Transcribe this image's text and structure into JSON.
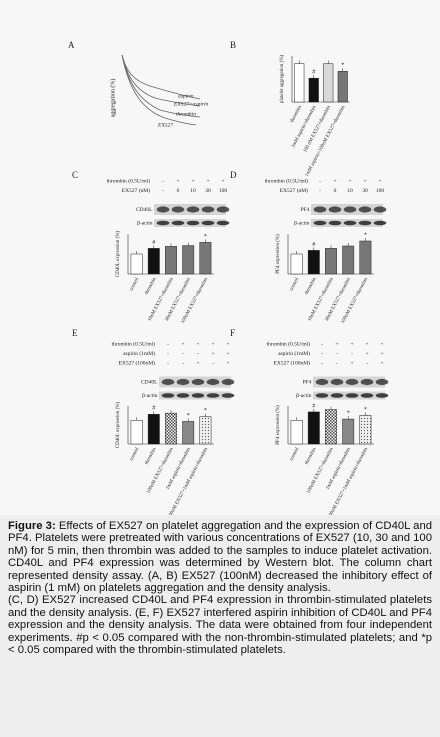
{
  "panel_a": {
    "label": "A",
    "ylabel": "aggregation (%)",
    "curves": [
      "aspirin",
      "EX527+aspirin",
      "thrombin",
      "EX527"
    ]
  },
  "chart_data": [
    {
      "type": "bar",
      "label": "B",
      "ylabel": "platelet aggregation (%)",
      "categories": [
        "thrombin",
        "1mM aspirin+thrombin",
        "100 nM EX527+thrombin",
        "1mM aspirin+100nM EX527+thrombin"
      ],
      "values": [
        100,
        62,
        100,
        80
      ],
      "fills": [
        "#ffffff",
        "#111111",
        "#d8d8d8",
        "#777777"
      ],
      "markers": [
        null,
        "#",
        null,
        "*"
      ],
      "ylim": [
        0,
        120
      ]
    },
    {
      "type": "bar",
      "label": "C",
      "ylabel": "CD40L expression (%)",
      "blot": {
        "rows": [
          {
            "name": "thrombin (0.5U/ml)",
            "cells": [
              "-",
              "+",
              "+",
              "+",
              "+"
            ]
          },
          {
            "name": "EX527 (nM)",
            "cells": [
              "-",
              "0",
              "10",
              "30",
              "100"
            ]
          }
        ],
        "bands": [
          "CD40L",
          "β-actin"
        ]
      },
      "categories": [
        "control",
        "thrombin",
        "10nM EX527+thrombin",
        "30nM EX527+thrombin",
        "100nM EX527+thrombin"
      ],
      "values": [
        100,
        128,
        138,
        142,
        158
      ],
      "fills": [
        "#ffffff",
        "#111111",
        "#777777",
        "#777777",
        "#777777"
      ],
      "markers": [
        null,
        "#",
        null,
        null,
        "*"
      ],
      "ylim": [
        0,
        200
      ]
    },
    {
      "type": "bar",
      "label": "D",
      "ylabel": "PF4 expression (%)",
      "blot": {
        "rows": [
          {
            "name": "thrombin (0.5U/ml)",
            "cells": [
              "-",
              "+",
              "+",
              "+",
              "+"
            ]
          },
          {
            "name": "EX527 (nM)",
            "cells": [
              "-",
              "0",
              "10",
              "30",
              "100"
            ]
          }
        ],
        "bands": [
          "PF4",
          "β-actin"
        ]
      },
      "categories": [
        "control",
        "thrombin",
        "10nM EX527+thrombin",
        "30nM EX527+thrombin",
        "100nM EX527+thrombin"
      ],
      "values": [
        100,
        118,
        128,
        140,
        165
      ],
      "fills": [
        "#ffffff",
        "#111111",
        "#777777",
        "#777777",
        "#777777"
      ],
      "markers": [
        null,
        "#",
        null,
        null,
        "*"
      ],
      "ylim": [
        0,
        200
      ]
    },
    {
      "type": "bar",
      "label": "E",
      "ylabel": "CD40L expression (%)",
      "blot": {
        "rows": [
          {
            "name": "thrombin (0.5U/ml)",
            "cells": [
              "-",
              "+",
              "+",
              "+",
              "+"
            ]
          },
          {
            "name": "aspirin (1mM)",
            "cells": [
              "-",
              "-",
              "-",
              "+",
              "+"
            ]
          },
          {
            "name": "EX527 (100nM)",
            "cells": [
              "-",
              "-",
              "+",
              "-",
              "+"
            ]
          }
        ],
        "bands": [
          "CD40L",
          "β-actin"
        ]
      },
      "categories": [
        "control",
        "thrombin",
        "100nM EX527+thrombin",
        "1mM aspirin+thrombin",
        "100nM EX527+1mM aspirin+thrombin"
      ],
      "values": [
        100,
        125,
        130,
        95,
        115
      ],
      "fills": [
        "#ffffff",
        "#111111",
        "checker",
        "#888888",
        "dots"
      ],
      "markers": [
        null,
        "#",
        null,
        "*",
        "*"
      ],
      "ylim": [
        0,
        160
      ]
    },
    {
      "type": "bar",
      "label": "F",
      "ylabel": "PF4 expression (%)",
      "blot": {
        "rows": [
          {
            "name": "thrombin (0.5U/ml)",
            "cells": [
              "-",
              "+",
              "+",
              "+",
              "+"
            ]
          },
          {
            "name": "aspirin (1mM)",
            "cells": [
              "-",
              "-",
              "-",
              "+",
              "+"
            ]
          },
          {
            "name": "EX527 (100nM)",
            "cells": [
              "-",
              "-",
              "+",
              "-",
              "+"
            ]
          }
        ],
        "bands": [
          "PF4",
          "β-actin"
        ]
      },
      "categories": [
        "control",
        "thrombin",
        "100nM EX527+thrombin",
        "1mM aspirin+thrombin",
        "100nM EX527+1mM aspirin+thrombin"
      ],
      "values": [
        100,
        135,
        145,
        105,
        120
      ],
      "fills": [
        "#ffffff",
        "#111111",
        "checker",
        "#888888",
        "dots"
      ],
      "markers": [
        null,
        "#",
        null,
        "*",
        "*"
      ],
      "ylim": [
        0,
        160
      ]
    }
  ],
  "caption": {
    "label": "Figure 3:",
    "text": "Effects of EX527 on platelet aggregation and the expression of CD40L and PF4. Platelets were pretreated with various concentrations of EX527 (10, 30 and 100 nM) for 5 min, then thrombin was added to the samples to induce platelet activation.  CD40L and PF4 expression was determined by Western blot. The column chart represented density assay. (A, B) EX527 (100nM) decreased the inhibitory effect of aspirin (1 mM) on platelets aggregation and the density analysis.",
    "text2": "(C, D) EX527 increased CD40L and PF4 expression in thrombin-stimulated platelets and the density analysis. (E, F) EX527 interfered aspirin inhibition of CD40L and PF4 expression and the density analysis. The data were obtained from four independent experiments. #p < 0.05 compared with the non-thrombin-stimulated platelets; and *p < 0.05 compared with the thrombin-stimulated platelets."
  }
}
